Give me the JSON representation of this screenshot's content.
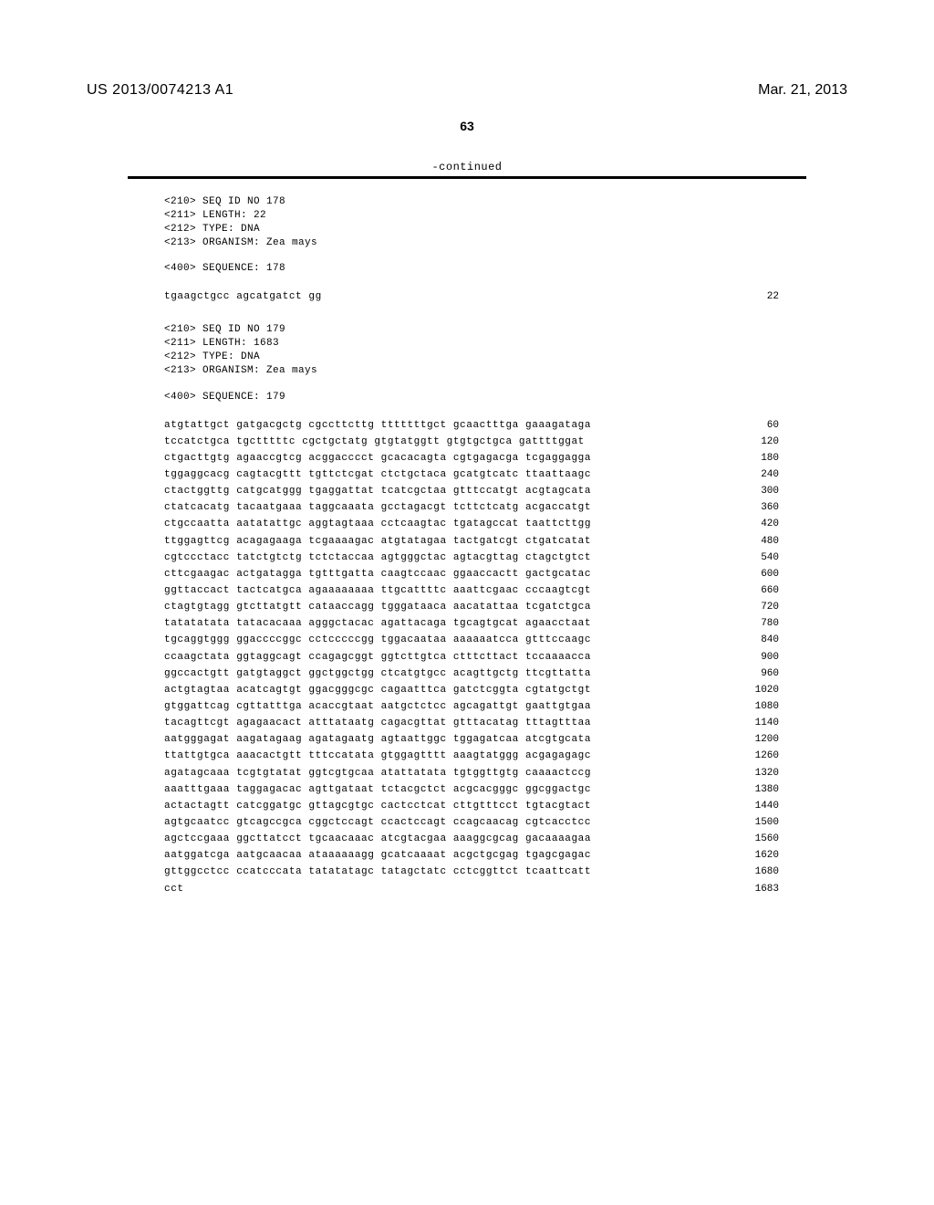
{
  "header": {
    "publication_number": "US 2013/0074213 A1",
    "publication_date": "Mar. 21, 2013",
    "page_number": "63",
    "continued_label": "-continued"
  },
  "sequences": [
    {
      "meta": [
        "<210> SEQ ID NO 178",
        "<211> LENGTH: 22",
        "<212> TYPE: DNA",
        "<213> ORGANISM: Zea mays"
      ],
      "seq_header": "<400> SEQUENCE: 178",
      "rows": [
        {
          "text": "tgaagctgcc agcatgatct gg",
          "num": "22"
        }
      ]
    },
    {
      "meta": [
        "<210> SEQ ID NO 179",
        "<211> LENGTH: 1683",
        "<212> TYPE: DNA",
        "<213> ORGANISM: Zea mays"
      ],
      "seq_header": "<400> SEQUENCE: 179",
      "rows": [
        {
          "text": "atgtattgct gatgacgctg cgccttcttg tttttttgct gcaactttga gaaagataga",
          "num": "60"
        },
        {
          "text": "tccatctgca tgctttttc cgctgctatg gtgtatggtt gtgtgctgca gattttggat",
          "num": "120"
        },
        {
          "text": "ctgacttgtg agaaccgtcg acggacccct gcacacagta cgtgagacga tcgaggagga",
          "num": "180"
        },
        {
          "text": "tggaggcacg cagtacgttt tgttctcgat ctctgctaca gcatgtcatc ttaattaagc",
          "num": "240"
        },
        {
          "text": "ctactggttg catgcatggg tgaggattat tcatcgctaa gtttccatgt acgtagcata",
          "num": "300"
        },
        {
          "text": "ctatcacatg tacaatgaaa taggcaaata gcctagacgt tcttctcatg acgaccatgt",
          "num": "360"
        },
        {
          "text": "ctgccaatta aatatattgc aggtagtaaa cctcaagtac tgatagccat taattcttgg",
          "num": "420"
        },
        {
          "text": "ttggagttcg acagagaaga tcgaaaagac atgtatagaa tactgatcgt ctgatcatat",
          "num": "480"
        },
        {
          "text": "cgtccctacc tatctgtctg tctctaccaa agtgggctac agtacgttag ctagctgtct",
          "num": "540"
        },
        {
          "text": "cttcgaagac actgatagga tgtttgatta caagtccaac ggaaccactt gactgcatac",
          "num": "600"
        },
        {
          "text": "ggttaccact tactcatgca agaaaaaaaa ttgcattttc aaattcgaac cccaagtcgt",
          "num": "660"
        },
        {
          "text": "ctagtgtagg gtcttatgtt cataaccagg tgggataaca aacatattaa tcgatctgca",
          "num": "720"
        },
        {
          "text": "tatatatata tatacacaaa agggctacac agattacaga tgcagtgcat agaacctaat",
          "num": "780"
        },
        {
          "text": "tgcaggtggg ggaccccggc cctcccccgg tggacaataa aaaaaatcca gtttccaagc",
          "num": "840"
        },
        {
          "text": "ccaagctata ggtaggcagt ccagagcggt ggtcttgtca ctttcttact tccaaaacca",
          "num": "900"
        },
        {
          "text": "ggccactgtt gatgtaggct ggctggctgg ctcatgtgcc acagttgctg ttcgttatta",
          "num": "960"
        },
        {
          "text": "actgtagtaa acatcagtgt ggacgggcgc cagaatttca gatctcggta cgtatgctgt",
          "num": "1020"
        },
        {
          "text": "gtggattcag cgttatttga acaccgtaat aatgctctcc agcagattgt gaattgtgaa",
          "num": "1080"
        },
        {
          "text": "tacagttcgt agagaacact atttataatg cagacgttat gtttacatag tttagtttaa",
          "num": "1140"
        },
        {
          "text": "aatgggagat aagatagaag agatagaatg agtaattggc tggagatcaa atcgtgcata",
          "num": "1200"
        },
        {
          "text": "ttattgtgca aaacactgtt tttccatata gtggagtttt aaagtatggg acgagagagc",
          "num": "1260"
        },
        {
          "text": "agatagcaaa tcgtgtatat ggtcgtgcaa atattatata tgtggttgtg caaaactccg",
          "num": "1320"
        },
        {
          "text": "aaatttgaaa taggagacac agttgataat tctacgctct acgcacgggc ggcggactgc",
          "num": "1380"
        },
        {
          "text": "actactagtt catcggatgc gttagcgtgc cactcctcat cttgtttcct tgtacgtact",
          "num": "1440"
        },
        {
          "text": "agtgcaatcc gtcagccgca cggctccagt ccactccagt ccagcaacag cgtcacctcc",
          "num": "1500"
        },
        {
          "text": "agctccgaaa ggcttatcct tgcaacaaac atcgtacgaa aaaggcgcag gacaaaagaa",
          "num": "1560"
        },
        {
          "text": "aatggatcga aatgcaacaa ataaaaaagg gcatcaaaat acgctgcgag tgagcgagac",
          "num": "1620"
        },
        {
          "text": "gttggcctcc ccatcccata tatatatagc tatagctatc cctcggttct tcaattcatt",
          "num": "1680"
        },
        {
          "text": "cct",
          "num": "1683"
        }
      ]
    }
  ]
}
